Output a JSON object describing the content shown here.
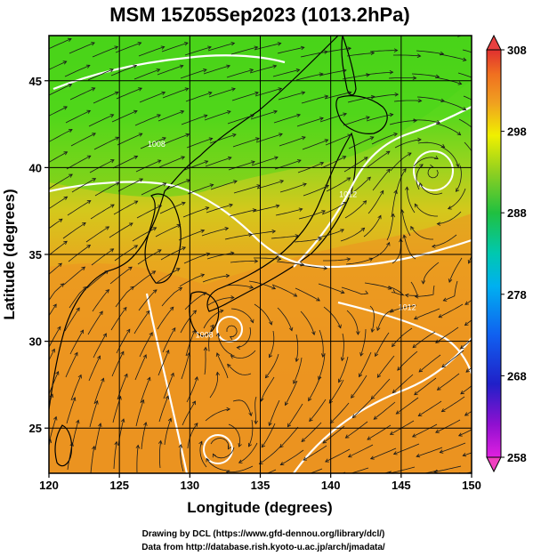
{
  "map": {
    "title": "MSM 15Z05Sep2023 (1013.2hPa)",
    "x_label": "Longitude (degrees)",
    "y_label": "Latitude  (degrees)",
    "lon_range": [
      120,
      150
    ],
    "lat_range": [
      22.4,
      47.6
    ],
    "lon_ticks": [
      120,
      125,
      130,
      135,
      140,
      145,
      150
    ],
    "lat_ticks": [
      25,
      30,
      35,
      40,
      45
    ],
    "lon_tick_labels": [
      "120",
      "125",
      "130",
      "135",
      "140",
      "145",
      "150"
    ],
    "lat_tick_labels": [
      "25",
      "30",
      "35",
      "40",
      "45"
    ],
    "grid": true,
    "field": "temperature (K) with streamlines and white isobars",
    "isobar_labels": [
      {
        "text": "1008",
        "lon": 127.0,
        "lat": 41.2
      },
      {
        "text": "1012",
        "lon": 140.6,
        "lat": 38.3
      },
      {
        "text": "1008",
        "lon": 130.4,
        "lat": 30.2
      },
      {
        "text": "1012",
        "lon": 144.8,
        "lat": 31.8
      }
    ]
  },
  "colorbar": {
    "min": 258,
    "max": 308,
    "tick_values": [
      258,
      268,
      278,
      288,
      298,
      308
    ],
    "tick_labels": [
      "258",
      "268",
      "278",
      "288",
      "298",
      "308"
    ],
    "colors": [
      "#e020e0",
      "#9010d0",
      "#2020c8",
      "#1060f0",
      "#00b0f0",
      "#00c8b0",
      "#20c040",
      "#90d020",
      "#f0f000",
      "#f0a020",
      "#f07020",
      "#e03030"
    ]
  },
  "credits": {
    "line1": "Drawing by DCL (https://www.gfd-dennou.org/library/dcl/)",
    "line2": "Data from http://database.rish.kyoto-u.ac.jp/arch/jmadata/"
  }
}
